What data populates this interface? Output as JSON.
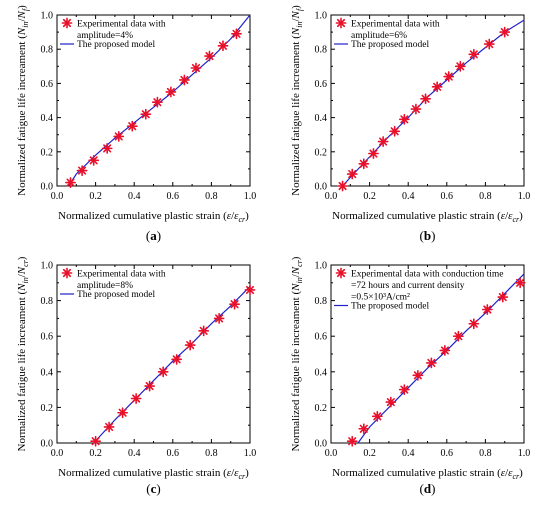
{
  "colors": {
    "marker": "#e8102a",
    "model_line": "#1e22c8",
    "axis": "#000000"
  },
  "chart_data": [
    {
      "type": "scatter",
      "caption": "(a)",
      "xlabel": "Normalized cumulative plastic strain (ε/ε_cr)",
      "ylabel": "Normalized fatigue life increament (N_in/N_f)",
      "xlim": [
        0,
        1.0
      ],
      "ylim": [
        0,
        1.0
      ],
      "xticks": [
        "0.0",
        "0.2",
        "0.4",
        "0.6",
        "0.8",
        "1.0"
      ],
      "yticks": [
        "0.0",
        "0.2",
        "0.4",
        "0.6",
        "0.8",
        "1.0"
      ],
      "legend_position": "top-left",
      "legend": [
        "Experimental data with",
        "amplitude=4%",
        "The proposed model"
      ],
      "series": [
        {
          "name": "Experimental data with amplitude=4%",
          "kind": "scatter",
          "marker": "asterisk",
          "x": [
            0.07,
            0.13,
            0.19,
            0.26,
            0.32,
            0.39,
            0.46,
            0.52,
            0.59,
            0.66,
            0.72,
            0.79,
            0.86,
            0.93
          ],
          "y": [
            0.02,
            0.09,
            0.15,
            0.22,
            0.29,
            0.35,
            0.42,
            0.49,
            0.55,
            0.62,
            0.69,
            0.76,
            0.82,
            0.89
          ]
        },
        {
          "name": "The proposed model",
          "kind": "line",
          "x": [
            0.06,
            0.1,
            0.2,
            0.3,
            0.4,
            0.5,
            0.6,
            0.7,
            0.8,
            0.9,
            1.0
          ],
          "y": [
            0.0,
            0.07,
            0.18,
            0.28,
            0.37,
            0.46,
            0.55,
            0.65,
            0.75,
            0.86,
            1.0
          ]
        }
      ]
    },
    {
      "type": "scatter",
      "caption": "(b)",
      "xlabel": "Normalized cumulative plastic strain (ε/ε_cr)",
      "ylabel": "Normalized fatigue life increament (N_in/N_f)",
      "xlim": [
        0,
        1.0
      ],
      "ylim": [
        0,
        1.0
      ],
      "xticks": [
        "0.0",
        "0.2",
        "0.4",
        "0.6",
        "0.8",
        "1.0"
      ],
      "yticks": [
        "0.0",
        "0.2",
        "0.4",
        "0.6",
        "0.8",
        "1.0"
      ],
      "legend_position": "top-left",
      "legend": [
        "Experimental data with",
        "amplitude=6%",
        "The proposed model"
      ],
      "series": [
        {
          "name": "Experimental data with amplitude=6%",
          "kind": "scatter",
          "marker": "asterisk",
          "x": [
            0.06,
            0.11,
            0.17,
            0.22,
            0.27,
            0.33,
            0.38,
            0.44,
            0.49,
            0.55,
            0.61,
            0.67,
            0.74,
            0.82,
            0.9
          ],
          "y": [
            0.0,
            0.07,
            0.13,
            0.19,
            0.26,
            0.32,
            0.39,
            0.45,
            0.51,
            0.58,
            0.64,
            0.7,
            0.77,
            0.83,
            0.9
          ]
        },
        {
          "name": "The proposed model",
          "kind": "line",
          "x": [
            0.06,
            0.1,
            0.2,
            0.3,
            0.4,
            0.5,
            0.6,
            0.7,
            0.8,
            0.9,
            1.0
          ],
          "y": [
            0.0,
            0.05,
            0.17,
            0.29,
            0.4,
            0.52,
            0.62,
            0.72,
            0.81,
            0.9,
            0.97
          ]
        }
      ]
    },
    {
      "type": "scatter",
      "caption": "(c)",
      "xlabel": "Normalized cumulative plastic strain (ε/ε_cr)",
      "ylabel": "Normalized fatigue life increament (N_in/N_cr)",
      "xlim": [
        0,
        1.0
      ],
      "ylim": [
        0,
        1.0
      ],
      "xticks": [
        "0.0",
        "0.2",
        "0.4",
        "0.6",
        "0.8",
        "1.0"
      ],
      "yticks": [
        "0.0",
        "0.2",
        "0.4",
        "0.6",
        "0.8",
        "1.0"
      ],
      "legend_position": "top-left",
      "legend": [
        "Experimental data with",
        "amplitude=8%",
        "The proposed model"
      ],
      "series": [
        {
          "name": "Experimental data with amplitude=8%",
          "kind": "scatter",
          "marker": "asterisk",
          "x": [
            0.2,
            0.27,
            0.34,
            0.41,
            0.48,
            0.55,
            0.62,
            0.69,
            0.76,
            0.84,
            0.92,
            1.0
          ],
          "y": [
            0.01,
            0.09,
            0.17,
            0.25,
            0.32,
            0.4,
            0.47,
            0.55,
            0.63,
            0.7,
            0.78,
            0.86
          ]
        },
        {
          "name": "The proposed model",
          "kind": "line",
          "x": [
            0.19,
            0.3,
            0.4,
            0.5,
            0.6,
            0.7,
            0.8,
            0.9,
            1.0
          ],
          "y": [
            0.0,
            0.13,
            0.24,
            0.35,
            0.46,
            0.56,
            0.67,
            0.77,
            0.88
          ]
        }
      ]
    },
    {
      "type": "scatter",
      "caption": "(d)",
      "xlabel": "Normalized cumulative plastic strain (ε/ε_cr)",
      "ylabel": "Normalized fatigue life increament (N_in/N_cr)",
      "xlim": [
        0,
        1.0
      ],
      "ylim": [
        0,
        1.0
      ],
      "xticks": [
        "0.0",
        "0.2",
        "0.4",
        "0.6",
        "0.8",
        "1.0"
      ],
      "yticks": [
        "0.0",
        "0.2",
        "0.4",
        "0.6",
        "0.8",
        "1.0"
      ],
      "legend_position": "top-left",
      "legend": [
        "Experimental data with conduction time",
        "=72 hours and current density",
        "=0.5×10³A/cm²",
        "The proposed model"
      ],
      "series": [
        {
          "name": "Experimental data with conduction time =72 hours and current density =0.5×10³A/cm²",
          "kind": "scatter",
          "marker": "asterisk",
          "x": [
            0.11,
            0.17,
            0.24,
            0.31,
            0.38,
            0.45,
            0.52,
            0.59,
            0.66,
            0.74,
            0.81,
            0.89,
            0.98
          ],
          "y": [
            0.01,
            0.08,
            0.15,
            0.23,
            0.3,
            0.38,
            0.45,
            0.52,
            0.6,
            0.67,
            0.75,
            0.82,
            0.9
          ]
        },
        {
          "name": "The proposed model",
          "kind": "line",
          "x": [
            0.14,
            0.2,
            0.3,
            0.4,
            0.5,
            0.6,
            0.7,
            0.8,
            0.9,
            1.0
          ],
          "y": [
            0.0,
            0.09,
            0.2,
            0.31,
            0.42,
            0.52,
            0.63,
            0.73,
            0.84,
            0.95
          ]
        }
      ]
    }
  ]
}
